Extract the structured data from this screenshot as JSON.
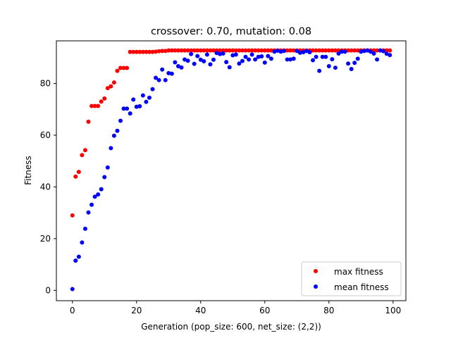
{
  "chart_data": {
    "type": "scatter",
    "title": "crossover: 0.70, mutation: 0.08",
    "xlabel": "Generation (pop_size: 600, net_size: (2,2))",
    "ylabel": "Fitness",
    "xlim": [
      -5,
      104
    ],
    "ylim": [
      -4,
      96.5
    ],
    "xticks": [
      0,
      20,
      40,
      60,
      80,
      100
    ],
    "yticks": [
      0,
      20,
      40,
      60,
      80
    ],
    "grid": false,
    "legend_position": "lower right",
    "series": [
      {
        "name": "max fitness",
        "color": "#ff0000",
        "x": [
          0,
          1,
          2,
          3,
          4,
          5,
          6,
          7,
          8,
          9,
          10,
          11,
          12,
          13,
          14,
          15,
          16,
          17,
          18,
          19,
          20,
          21,
          22,
          23,
          24,
          25,
          26,
          27,
          28,
          29,
          30,
          31,
          32,
          33,
          34,
          35,
          36,
          37,
          38,
          39,
          40,
          41,
          42,
          43,
          44,
          45,
          46,
          47,
          48,
          49,
          50,
          51,
          52,
          53,
          54,
          55,
          56,
          57,
          58,
          59,
          60,
          61,
          62,
          63,
          64,
          65,
          66,
          67,
          68,
          69,
          70,
          71,
          72,
          73,
          74,
          75,
          76,
          77,
          78,
          79,
          80,
          81,
          82,
          83,
          84,
          85,
          86,
          87,
          88,
          89,
          90,
          91,
          92,
          93,
          94,
          95,
          96,
          97,
          98,
          99
        ],
        "y": [
          29,
          44,
          45.8,
          52.3,
          54.2,
          65.2,
          71.3,
          71.3,
          71.3,
          73,
          74.2,
          78.2,
          78.9,
          80.4,
          84.9,
          86,
          86,
          86,
          92.2,
          92.2,
          92.2,
          92.2,
          92.2,
          92.2,
          92.2,
          92.2,
          92.3,
          92.5,
          92.6,
          92.6,
          92.8,
          92.8,
          92.8,
          92.8,
          92.8,
          92.8,
          92.8,
          92.8,
          92.8,
          92.8,
          92.8,
          92.8,
          92.8,
          92.8,
          92.8,
          92.8,
          92.8,
          92.8,
          92.8,
          92.8,
          92.8,
          92.8,
          92.8,
          92.8,
          92.8,
          92.8,
          92.8,
          92.8,
          92.8,
          92.8,
          92.8,
          92.8,
          92.8,
          92.8,
          92.8,
          92.8,
          92.8,
          92.8,
          92.8,
          92.8,
          92.8,
          92.8,
          92.8,
          92.8,
          92.8,
          92.8,
          92.8,
          92.8,
          92.8,
          92.8,
          92.8,
          92.8,
          92.8,
          92.8,
          92.8,
          92.8,
          92.8,
          92.8,
          92.8,
          92.8,
          92.8,
          92.8,
          92.8,
          92.8,
          92.8,
          92.8,
          92.8,
          92.8,
          92.8,
          92.8
        ]
      },
      {
        "name": "mean fitness",
        "color": "#0000ff",
        "x": [
          0,
          1,
          2,
          3,
          4,
          5,
          6,
          7,
          8,
          9,
          10,
          11,
          12,
          13,
          14,
          15,
          16,
          17,
          18,
          19,
          20,
          21,
          22,
          23,
          24,
          25,
          26,
          27,
          28,
          29,
          30,
          31,
          32,
          33,
          34,
          35,
          36,
          37,
          38,
          39,
          40,
          41,
          42,
          43,
          44,
          45,
          46,
          47,
          48,
          49,
          50,
          51,
          52,
          53,
          54,
          55,
          56,
          57,
          58,
          59,
          60,
          61,
          62,
          63,
          64,
          65,
          66,
          67,
          68,
          69,
          70,
          71,
          72,
          73,
          74,
          75,
          76,
          77,
          78,
          79,
          80,
          81,
          82,
          83,
          84,
          85,
          86,
          87,
          88,
          89,
          90,
          91,
          92,
          93,
          94,
          95,
          96,
          97,
          98,
          99
        ],
        "y": [
          0.5,
          11.5,
          13,
          18.5,
          23.8,
          30.1,
          33.1,
          36.2,
          37.1,
          39.1,
          43.8,
          47.5,
          55,
          59.8,
          61.7,
          65.6,
          70.3,
          70.3,
          68.4,
          73.8,
          71,
          71.2,
          75.4,
          72.9,
          74.5,
          77.8,
          82.2,
          81.3,
          85.4,
          81.3,
          84,
          83.8,
          88.2,
          86.7,
          86.2,
          89.3,
          88.8,
          91.4,
          87.6,
          90.6,
          89.2,
          88.6,
          91.2,
          87.4,
          89.2,
          91.8,
          91.4,
          91.6,
          88.3,
          86.3,
          90.9,
          91.2,
          87.7,
          88.7,
          90.3,
          89.3,
          91.2,
          89.3,
          90.3,
          90.5,
          88.1,
          90.6,
          89.6,
          92.3,
          92.7,
          92.3,
          92.6,
          89.3,
          89.3,
          89.6,
          92.6,
          91.9,
          92.1,
          92.6,
          92.1,
          89,
          90.3,
          84.9,
          90.3,
          90.3,
          86.7,
          89.4,
          86.1,
          91.6,
          92.3,
          92.3,
          87.7,
          85.6,
          88,
          89.6,
          92.3,
          92.6,
          92.8,
          92.3,
          91.6,
          89.3,
          92.8,
          92.5,
          91.5,
          91
        ]
      }
    ]
  }
}
